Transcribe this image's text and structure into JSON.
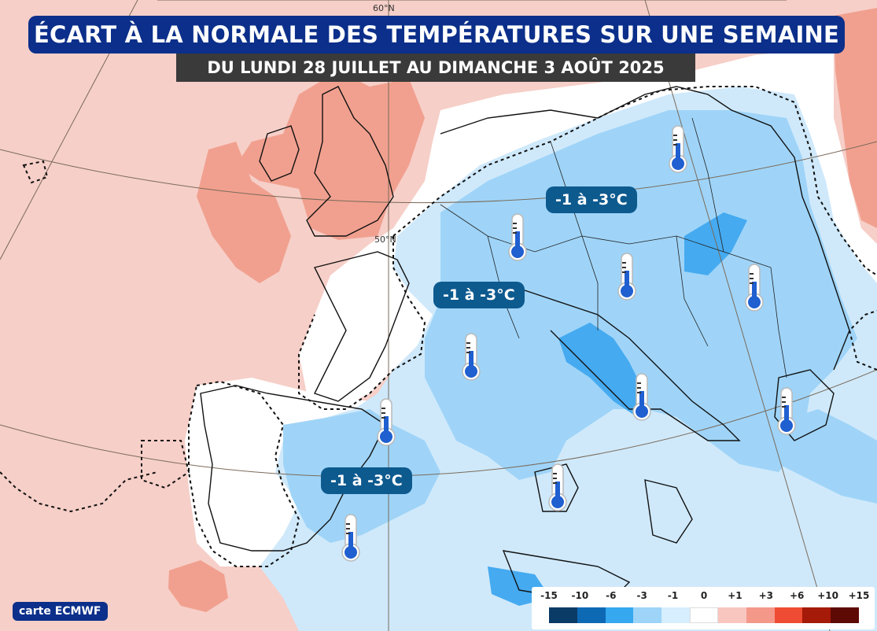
{
  "title": "ÉCART À LA NORMALE DES TEMPÉRATURES SUR UNE SEMAINE",
  "subtitle": "DU LUNDI 28 JUILLET AU DIMANCHE 3 AOÛT 2025",
  "lat_labels": {
    "lat60": "60°N",
    "lat50": "50°N"
  },
  "region_labels": [
    {
      "id": "central-europe",
      "text": "-1 à -3°C"
    },
    {
      "id": "france-east",
      "text": "-1 à -3°C"
    },
    {
      "id": "spain-mediterranean",
      "text": "-1 à -3°C"
    }
  ],
  "thermometer_icon": "thermometer-cold-icon",
  "source": "carte ECMWF",
  "legend": {
    "labels": [
      "-15",
      "-10",
      "-6",
      "-3",
      "-1",
      "0",
      "+1",
      "+3",
      "+6",
      "+10",
      "+15"
    ],
    "colors": [
      "#0a3a66",
      "#0e69b5",
      "#35a8ef",
      "#9dd4f8",
      "#d6eefd",
      "#ffffff",
      "#f8c6bf",
      "#f4988a",
      "#ee4d33",
      "#a51a08",
      "#5e0a04"
    ]
  },
  "colors": {
    "title_bg": "#0b2f8a",
    "subtitle_bg": "#3a3a3a",
    "label_bg": "#0d5a8f",
    "warm_light": "#f6cfc8",
    "warm_mid": "#f1a08f",
    "cold_light": "#cfe9fb",
    "cold_mid": "#9fd4f8",
    "cold_strong": "#45aaf0"
  }
}
